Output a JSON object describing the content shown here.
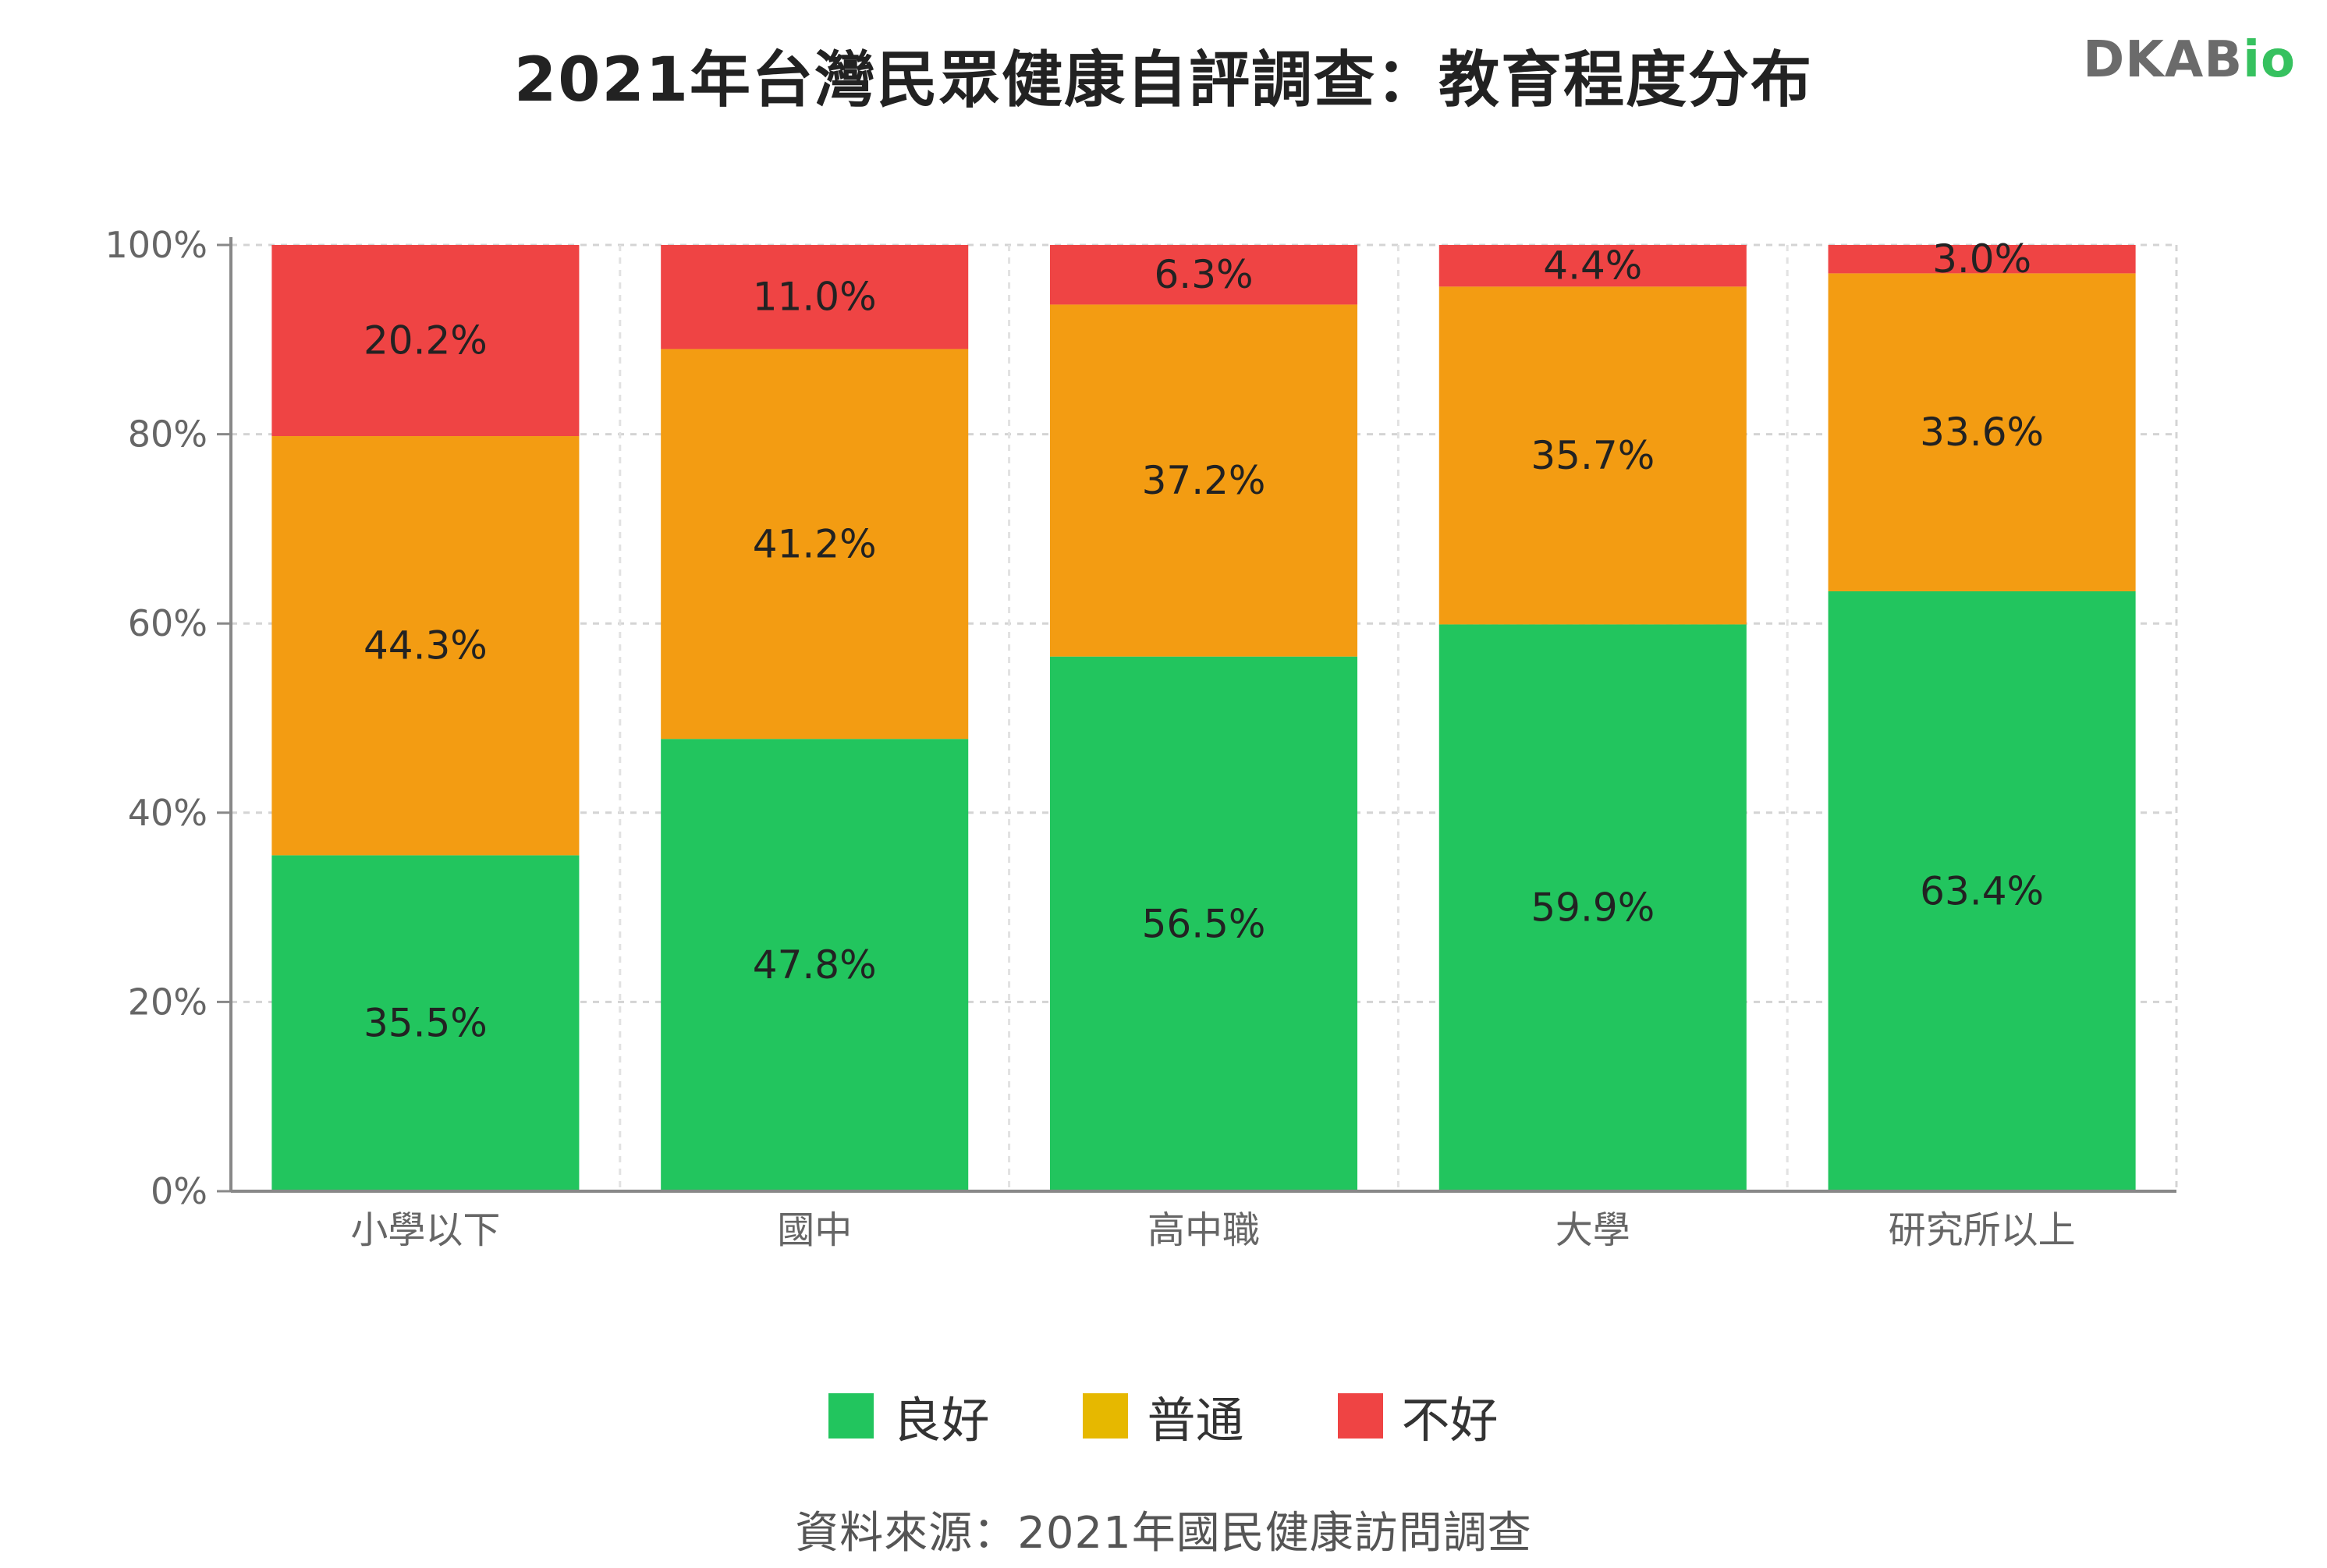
{
  "chart_data": {
    "type": "bar",
    "stacked": true,
    "title": "2021年台灣民眾健康自評調查：教育程度分布",
    "source": "資料來源：2021年國民健康訪問調查",
    "categories": [
      "小學以下",
      "國中",
      "高中職",
      "大學",
      "研究所以上"
    ],
    "series": [
      {
        "name": "良好",
        "color": "#22c55e",
        "values": [
          35.5,
          47.8,
          56.5,
          59.9,
          63.4
        ]
      },
      {
        "name": "普通",
        "color": "#f39c12",
        "values": [
          44.3,
          41.2,
          37.2,
          35.7,
          33.6
        ]
      },
      {
        "name": "不好",
        "color": "#ef4444",
        "values": [
          20.2,
          11.0,
          6.3,
          4.4,
          3.0
        ]
      }
    ],
    "ylim": [
      0,
      100
    ],
    "yticks": [
      "0%",
      "20%",
      "40%",
      "60%",
      "80%",
      "100%"
    ],
    "grid": true,
    "legend_position": "bottom",
    "legend": [
      {
        "label": "良好",
        "color": "#22c55e"
      },
      {
        "label": "普通",
        "color": "#e6b800"
      },
      {
        "label": "不好",
        "color": "#ef4444"
      }
    ]
  },
  "logo": {
    "main": "DKAB",
    "accent": "io"
  }
}
